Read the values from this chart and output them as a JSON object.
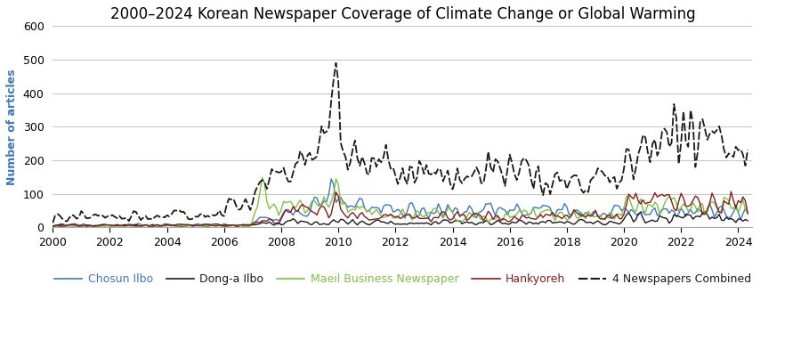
{
  "title": "2000–2024 Korean Newspaper Coverage of Climate Change or Global Warming",
  "ylabel": "Number of articles",
  "xlabel": "",
  "ylim": [
    0,
    600
  ],
  "yticks": [
    0,
    100,
    200,
    300,
    400,
    500,
    600
  ],
  "xmin": 2000.0,
  "xmax": 2024.5,
  "xticks": [
    2000,
    2002,
    2004,
    2006,
    2008,
    2010,
    2012,
    2014,
    2016,
    2018,
    2020,
    2022,
    2024
  ],
  "legend": [
    "Chosun Ilbo",
    "Dong-a Ilbo",
    "Maeil Business Newspaper",
    "Hankyoreh",
    "4 Newspapers Combined"
  ],
  "colors": {
    "chosun": "#3B78C3",
    "donga": "#1a1a1a",
    "maeil": "#7DC142",
    "hankyoreh": "#8B1A1A",
    "combined": "#1a1a1a"
  },
  "background_color": "#ffffff",
  "grid_color": "#c8c8c8",
  "title_fontsize": 12,
  "axis_label_fontsize": 9,
  "tick_fontsize": 9,
  "legend_fontsize": 9
}
